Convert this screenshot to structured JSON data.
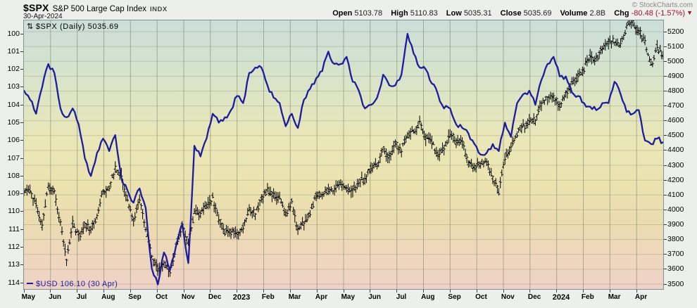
{
  "header": {
    "symbol": "$SPX",
    "name": "S&P 500 Large Cap Index",
    "exchange": "INDX",
    "date": "30-Apr-2024",
    "copyright": "© StockCharts.com",
    "quote": {
      "open_label": "Open",
      "open": "5103.78",
      "high_label": "High",
      "high": "5110.83",
      "low_label": "Low",
      "low": "5035.31",
      "close_label": "Close",
      "close": "5035.69",
      "volume_label": "Volume",
      "volume": "2.8B",
      "chg_label": "Chg",
      "chg": "-80.48 (-1.57%)",
      "chg_direction": "down"
    }
  },
  "chart_data": {
    "type": "line",
    "title": "$SPX S&P 500 Large Cap Index with $USD overlay",
    "x_start": "May-2022",
    "x_end": "Apr-2024",
    "x_labels": [
      "May",
      "Jun",
      "Jul",
      "Aug",
      "Sep",
      "Oct",
      "Nov",
      "Dec",
      "2023",
      "Feb",
      "Mar",
      "Apr",
      "May",
      "Jun",
      "Jul",
      "Aug",
      "Sep",
      "Oct",
      "Nov",
      "Dec",
      "2024",
      "Feb",
      "Mar",
      "Apr"
    ],
    "right_axis": {
      "min": 3500,
      "max": 5200,
      "step": 100,
      "series": "$SPX"
    },
    "left_axis": {
      "min": 100,
      "max": 114,
      "step": 1,
      "inverted": true,
      "series": "$USD"
    },
    "grid": "on",
    "legend_top": "$SPX (Daily) 5035.69",
    "legend_bottom": "$USD 106.10 (30 Apr)",
    "colors": {
      "spx": "#000000",
      "usd": "#1c1c9c",
      "chg_negative": "#9e1430"
    },
    "series": [
      {
        "name": "$SPX (Daily)",
        "axis": "right",
        "style": "ohlc-bars",
        "sampling": "weekly-close",
        "values": [
          4132,
          4123,
          4024,
          3901,
          4158,
          4109,
          3901,
          3675,
          3912,
          3825,
          3899,
          3863,
          3962,
          4130,
          4145,
          4280,
          4228,
          4058,
          3924,
          4067,
          3873,
          3693,
          3586,
          3640,
          3583,
          3753,
          3901,
          3771,
          3993,
          3965,
          4026,
          4072,
          3934,
          3852,
          3845,
          3839,
          3895,
          3999,
          3973,
          4071,
          4136,
          4090,
          4079,
          3970,
          4046,
          3862,
          3917,
          3971,
          4109,
          4105,
          4138,
          4134,
          4169,
          4136,
          4124,
          4192,
          4205,
          4282,
          4299,
          4410,
          4348,
          4450,
          4399,
          4505,
          4536,
          4582,
          4478,
          4464,
          4370,
          4406,
          4516,
          4457,
          4450,
          4320,
          4288,
          4308,
          4328,
          4224,
          4117,
          4358,
          4415,
          4514,
          4559,
          4594,
          4604,
          4719,
          4754,
          4770,
          4697,
          4784,
          4840,
          4891,
          4959,
          5027,
          5006,
          5089,
          5137,
          5124,
          5117,
          5234,
          5254,
          5204,
          5123,
          4967,
          5100,
          5036
        ]
      },
      {
        "name": "$USD",
        "axis": "left",
        "style": "line",
        "sampling": "weekly-close",
        "values": [
          103.2,
          103.7,
          104.5,
          103.0,
          101.7,
          102.2,
          104.2,
          104.7,
          104.2,
          105.1,
          107.0,
          108.0,
          106.7,
          105.9,
          106.6,
          105.7,
          108.1,
          108.8,
          109.5,
          108.7,
          109.8,
          113.2,
          114.1,
          112.3,
          113.3,
          111.9,
          110.7,
          112.9,
          106.3,
          106.9,
          105.9,
          104.5,
          105.0,
          104.7,
          104.3,
          103.5,
          103.9,
          102.2,
          101.9,
          101.9,
          102.9,
          103.6,
          103.9,
          105.2,
          104.5,
          105.3,
          103.7,
          103.1,
          102.5,
          102.1,
          101.0,
          101.7,
          101.7,
          101.3,
          102.7,
          103.2,
          104.2,
          104.0,
          103.6,
          102.3,
          102.9,
          102.9,
          102.3,
          100.0,
          101.1,
          101.9,
          102.0,
          102.8,
          103.4,
          104.2,
          104.2,
          105.1,
          105.3,
          105.6,
          106.2,
          106.8,
          106.7,
          106.2,
          106.6,
          105.0,
          105.8,
          103.9,
          103.4,
          103.2,
          104.0,
          102.6,
          101.7,
          101.3,
          102.4,
          102.4,
          103.3,
          103.5,
          103.9,
          104.1,
          104.3,
          103.9,
          103.9,
          102.7,
          103.4,
          104.4,
          104.5,
          104.3,
          106.0,
          106.2,
          105.9,
          106.1
        ]
      }
    ]
  }
}
